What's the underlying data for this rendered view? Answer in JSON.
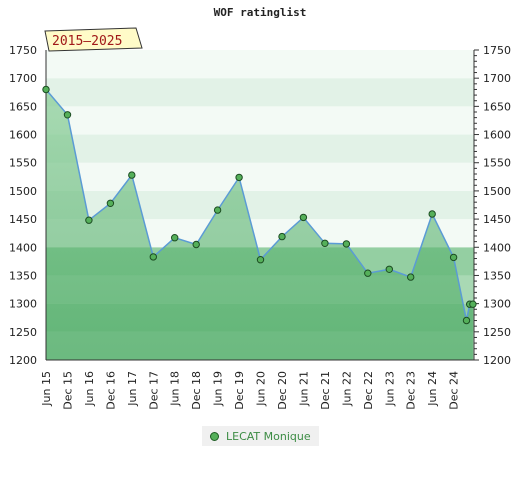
{
  "chart_data": {
    "type": "area",
    "title": "WOF ratinglist",
    "range_label": "2015–2025",
    "x": [
      "Jun 15",
      "Dec 15",
      "Jun 16",
      "Dec 16",
      "Jun 17",
      "Dec 17",
      "Jun 18",
      "Dec 18",
      "Jun 19",
      "Dec 19",
      "Jun 20",
      "Dec 20",
      "Jun 21",
      "Dec 21",
      "Jun 22",
      "Dec 22",
      "Jun 23",
      "Dec 23",
      "Jun 24",
      "Dec 24"
    ],
    "points": [
      {
        "x": 0,
        "y": 1680
      },
      {
        "x": 1,
        "y": 1635
      },
      {
        "x": 2,
        "y": 1448
      },
      {
        "x": 3,
        "y": 1478
      },
      {
        "x": 4,
        "y": 1528
      },
      {
        "x": 5,
        "y": 1383
      },
      {
        "x": 6,
        "y": 1417
      },
      {
        "x": 7,
        "y": 1405
      },
      {
        "x": 8,
        "y": 1466
      },
      {
        "x": 9,
        "y": 1524
      },
      {
        "x": 10,
        "y": 1378
      },
      {
        "x": 11,
        "y": 1419
      },
      {
        "x": 12,
        "y": 1453
      },
      {
        "x": 13,
        "y": 1407
      },
      {
        "x": 14,
        "y": 1406
      },
      {
        "x": 15,
        "y": 1354
      },
      {
        "x": 16,
        "y": 1361
      },
      {
        "x": 17,
        "y": 1347
      },
      {
        "x": 18,
        "y": 1459
      },
      {
        "x": 19,
        "y": 1382
      },
      {
        "x": 19.6,
        "y": 1270
      },
      {
        "x": 19.75,
        "y": 1299
      },
      {
        "x": 19.9,
        "y": 1299
      }
    ],
    "ylim": [
      1200,
      1750
    ],
    "yticks": [
      1200,
      1250,
      1300,
      1350,
      1400,
      1450,
      1500,
      1550,
      1600,
      1650,
      1700,
      1750
    ],
    "ylabel_left": "",
    "ylabel_right": "",
    "grid": "horizontal bands",
    "legend_position": "bottom-center",
    "series": [
      {
        "name": "LECAT Monique",
        "marker_color": "#55b05a"
      }
    ],
    "colors": {
      "line": "#5b9bd5",
      "fill_top": "#90ce9e",
      "band_light": "#e8f4ec",
      "band_dark": "#7bc18c"
    }
  }
}
